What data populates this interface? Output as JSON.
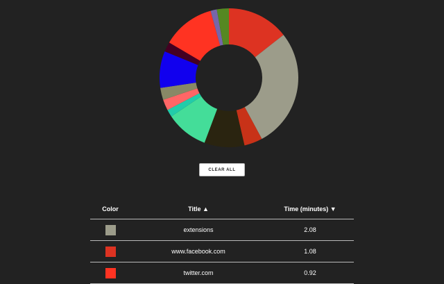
{
  "chart_data": {
    "type": "donut",
    "values": [
      1.08,
      2.08,
      0.32,
      0.7,
      0.74,
      0.13,
      0.19,
      0.21,
      0.64,
      0.17,
      0.92,
      0.11,
      0.21
    ],
    "colors": [
      "#dd3322",
      "#9c9c8a",
      "#c83218",
      "#2a2410",
      "#44dd99",
      "#22ccaa",
      "#ff6666",
      "#888866",
      "#1100ee",
      "#440022",
      "#ff3322",
      "#7766aa",
      "#558822"
    ]
  },
  "button": "CLEAR ALL",
  "table": {
    "headers": [
      "Color",
      "Title ▲",
      "Time (minutes) ▼"
    ],
    "rows": [
      {
        "color": "#9c9c8a",
        "title": "extensions",
        "time": "2.08"
      },
      {
        "color": "#dd3322",
        "title": "www.facebook.com",
        "time": "1.08"
      },
      {
        "color": "#ff3322",
        "title": "twitter.com",
        "time": "0.92"
      }
    ]
  }
}
